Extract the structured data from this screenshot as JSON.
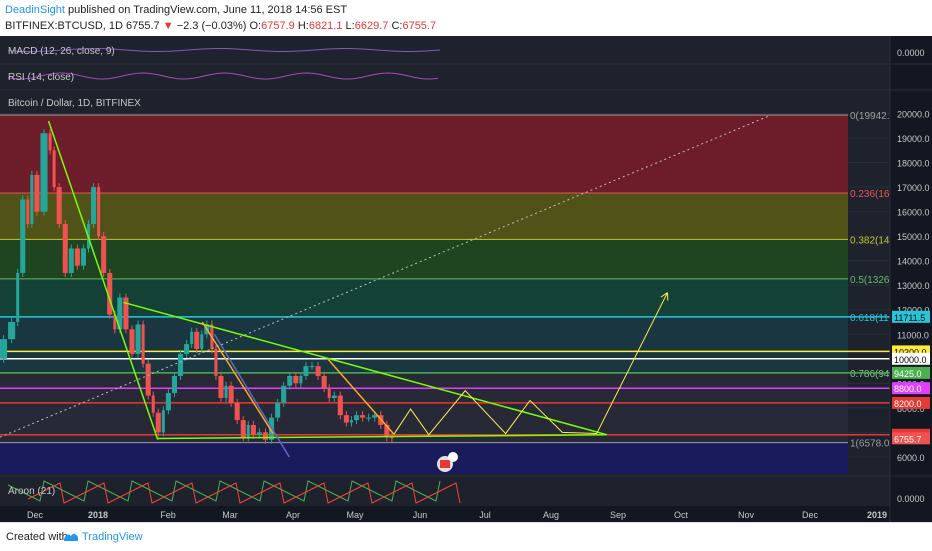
{
  "header": {
    "author": "DeadinSight",
    "published_text": "published on TradingView.com, June 11, 2018 14:56 EST",
    "symbol": "BITFINEX:BTCUSD, 1D",
    "last": "6755.7",
    "change": "−2.3 (−0.03%)",
    "o_label": "O:",
    "o": "6757.9",
    "h_label": "H:",
    "h": "6821.1",
    "l_label": "L:",
    "l": "6629.7",
    "c_label": "C:",
    "c": "6755.7"
  },
  "footer": {
    "created": "Created with",
    "brand": "TradingView"
  },
  "panes": {
    "macd": {
      "label": "MACD (12, 26, close, 9)",
      "tick": "0.0000"
    },
    "rsi": {
      "label": "RSI (14, close)"
    },
    "main": {
      "label": "Bitcoin / Dollar, 1D, BITFINEX"
    },
    "aroon": {
      "label": "Aroon (21)",
      "tick": "0.0000"
    }
  },
  "chart_data": {
    "type": "line",
    "title": "Bitcoin / Dollar, 1D, BITFINEX",
    "x_ticks": [
      "Dec",
      "2018",
      "Feb",
      "Mar",
      "Apr",
      "May",
      "Jun",
      "Jul",
      "Aug",
      "Sep",
      "Oct",
      "Nov",
      "Dec",
      "2019"
    ],
    "y_ticks": [
      6000,
      7000,
      8000,
      9000,
      10000,
      11000,
      12000,
      13000,
      14000,
      15000,
      16000,
      17000,
      18000,
      19000,
      20000
    ],
    "ylim": [
      5300,
      20800
    ],
    "xlim": [
      0,
      440
    ],
    "price_series": [
      {
        "x": 0,
        "y": 10000
      },
      {
        "x": 4,
        "y": 10800
      },
      {
        "x": 8,
        "y": 11500
      },
      {
        "x": 10,
        "y": 13500
      },
      {
        "x": 13,
        "y": 16500
      },
      {
        "x": 15,
        "y": 15500
      },
      {
        "x": 17,
        "y": 17500
      },
      {
        "x": 20,
        "y": 16000
      },
      {
        "x": 24,
        "y": 19200
      },
      {
        "x": 26,
        "y": 18500
      },
      {
        "x": 28,
        "y": 17000
      },
      {
        "x": 31,
        "y": 15500
      },
      {
        "x": 34,
        "y": 13500
      },
      {
        "x": 37,
        "y": 14500
      },
      {
        "x": 40,
        "y": 13800
      },
      {
        "x": 43,
        "y": 14500
      },
      {
        "x": 45,
        "y": 15500
      },
      {
        "x": 48,
        "y": 17000
      },
      {
        "x": 50,
        "y": 15000
      },
      {
        "x": 53,
        "y": 13500
      },
      {
        "x": 56,
        "y": 11800
      },
      {
        "x": 58,
        "y": 11200
      },
      {
        "x": 61,
        "y": 12500
      },
      {
        "x": 64,
        "y": 11200
      },
      {
        "x": 67,
        "y": 10200
      },
      {
        "x": 70,
        "y": 11400
      },
      {
        "x": 72,
        "y": 9800
      },
      {
        "x": 75,
        "y": 8500
      },
      {
        "x": 77,
        "y": 7800
      },
      {
        "x": 80,
        "y": 7000
      },
      {
        "x": 82,
        "y": 7900
      },
      {
        "x": 85,
        "y": 8600
      },
      {
        "x": 88,
        "y": 9300
      },
      {
        "x": 91,
        "y": 10200
      },
      {
        "x": 94,
        "y": 10600
      },
      {
        "x": 96,
        "y": 11100
      },
      {
        "x": 99,
        "y": 10400
      },
      {
        "x": 101,
        "y": 11000
      },
      {
        "x": 104,
        "y": 11400
      },
      {
        "x": 106,
        "y": 10400
      },
      {
        "x": 108,
        "y": 9300
      },
      {
        "x": 111,
        "y": 8400
      },
      {
        "x": 113,
        "y": 8900
      },
      {
        "x": 116,
        "y": 8200
      },
      {
        "x": 119,
        "y": 7500
      },
      {
        "x": 122,
        "y": 6800
      },
      {
        "x": 124,
        "y": 7300
      },
      {
        "x": 127,
        "y": 6900
      },
      {
        "x": 130,
        "y": 7000
      },
      {
        "x": 133,
        "y": 6700
      },
      {
        "x": 136,
        "y": 7600
      },
      {
        "x": 139,
        "y": 8200
      },
      {
        "x": 142,
        "y": 8900
      },
      {
        "x": 145,
        "y": 9300
      },
      {
        "x": 148,
        "y": 9000
      },
      {
        "x": 150,
        "y": 9300
      },
      {
        "x": 153,
        "y": 9700
      },
      {
        "x": 156,
        "y": 9700
      },
      {
        "x": 159,
        "y": 9300
      },
      {
        "x": 162,
        "y": 8800
      },
      {
        "x": 164,
        "y": 8400
      },
      {
        "x": 167,
        "y": 8500
      },
      {
        "x": 170,
        "y": 7700
      },
      {
        "x": 173,
        "y": 7400
      },
      {
        "x": 175,
        "y": 7500
      },
      {
        "x": 178,
        "y": 7700
      },
      {
        "x": 181,
        "y": 7600
      },
      {
        "x": 184,
        "y": 7600
      },
      {
        "x": 187,
        "y": 7700
      },
      {
        "x": 190,
        "y": 7300
      },
      {
        "x": 193,
        "y": 6800
      },
      {
        "x": 195,
        "y": 6756
      }
    ],
    "fib_levels": [
      {
        "ratio": "0(19942.",
        "value": 19942,
        "color": "#9e9e9e",
        "zone": "#7b1c2a"
      },
      {
        "ratio": "0.236(16",
        "value": 16760,
        "color": "#ef5350",
        "zone": "#5a5a14"
      },
      {
        "ratio": "0.382(14",
        "value": 14870,
        "color": "#c0ca33",
        "zone": "#1e4a1e"
      },
      {
        "ratio": "0.5(1326",
        "value": 13260,
        "color": "#66bb6a",
        "zone": "#134638"
      },
      {
        "ratio": "0.618(11",
        "value": 11710,
        "color": "#26c6da",
        "zone": "#1a3a44"
      },
      {
        "ratio": "0.786(94",
        "value": 9420,
        "color": "#81c784",
        "zone": "#2a2a3a"
      },
      {
        "ratio": "1(6578.0",
        "value": 6578,
        "color": "#9e9e9e",
        "zone": "#1a1a66"
      }
    ],
    "price_labels": [
      {
        "text": "11711.5",
        "value": 11711.5,
        "color": "#26c6da"
      },
      {
        "text": "10300.0",
        "value": 10300,
        "color": "#ffeb3b"
      },
      {
        "text": "10000.0",
        "value": 10000,
        "color": "#ffffff"
      },
      {
        "text": "9425.0",
        "value": 9425,
        "color": "#4caf50"
      },
      {
        "text": "8800.0",
        "value": 8800,
        "color": "#e040fb"
      },
      {
        "text": "8200.0",
        "value": 8200,
        "color": "#e53935"
      },
      {
        "text": "6900.0",
        "value": 6900,
        "color": "#e53935"
      },
      {
        "text": "6755.7",
        "value": 6755.7,
        "color": "#ef5350"
      }
    ],
    "horizontal_lines": [
      {
        "value": 11711.5,
        "color": "#26c6da"
      },
      {
        "value": 10300,
        "color": "#ffeb3b"
      },
      {
        "value": 10000,
        "color": "#ffffff"
      },
      {
        "value": 9425,
        "color": "#4caf50"
      },
      {
        "value": 8800,
        "color": "#e040fb"
      },
      {
        "value": 8200,
        "color": "#e53935"
      },
      {
        "value": 6900,
        "color": "#e53935"
      }
    ],
    "trendlines": [
      {
        "x1": 24,
        "y1": 19700,
        "x2": 78,
        "y2": 6700,
        "color": "#76ff03"
      },
      {
        "x1": 61,
        "y1": 12300,
        "x2": 300,
        "y2": 6900,
        "color": "#76ff03"
      },
      {
        "x1": 78,
        "y1": 6750,
        "x2": 300,
        "y2": 6900,
        "color": "#76ff03"
      },
      {
        "x1": 106,
        "y1": 11000,
        "x2": 143,
        "y2": 6000,
        "color": "#5c6bc0"
      },
      {
        "x1": 100,
        "y1": 11500,
        "x2": 135,
        "y2": 6950,
        "color": "#ffa726"
      },
      {
        "x1": 162,
        "y1": 10000,
        "x2": 195,
        "y2": 6900,
        "color": "#ffa726"
      },
      {
        "x1": 0,
        "y1": 6800,
        "x2": 380,
        "y2": 19900,
        "color": "#bdbdbd",
        "dotted": true
      }
    ],
    "projection": [
      {
        "x": 195,
        "y": 6950
      },
      {
        "x": 203,
        "y": 7950
      },
      {
        "x": 212,
        "y": 6900
      },
      {
        "x": 230,
        "y": 8700
      },
      {
        "x": 250,
        "y": 6950
      },
      {
        "x": 262,
        "y": 8300
      },
      {
        "x": 278,
        "y": 7000
      },
      {
        "x": 295,
        "y": 6950
      },
      {
        "x": 330,
        "y": 12700
      }
    ],
    "projection_color": "#ffee58",
    "macd_ticks": [
      "0.0000"
    ],
    "aroon_ticks": [
      "0.0000"
    ]
  }
}
